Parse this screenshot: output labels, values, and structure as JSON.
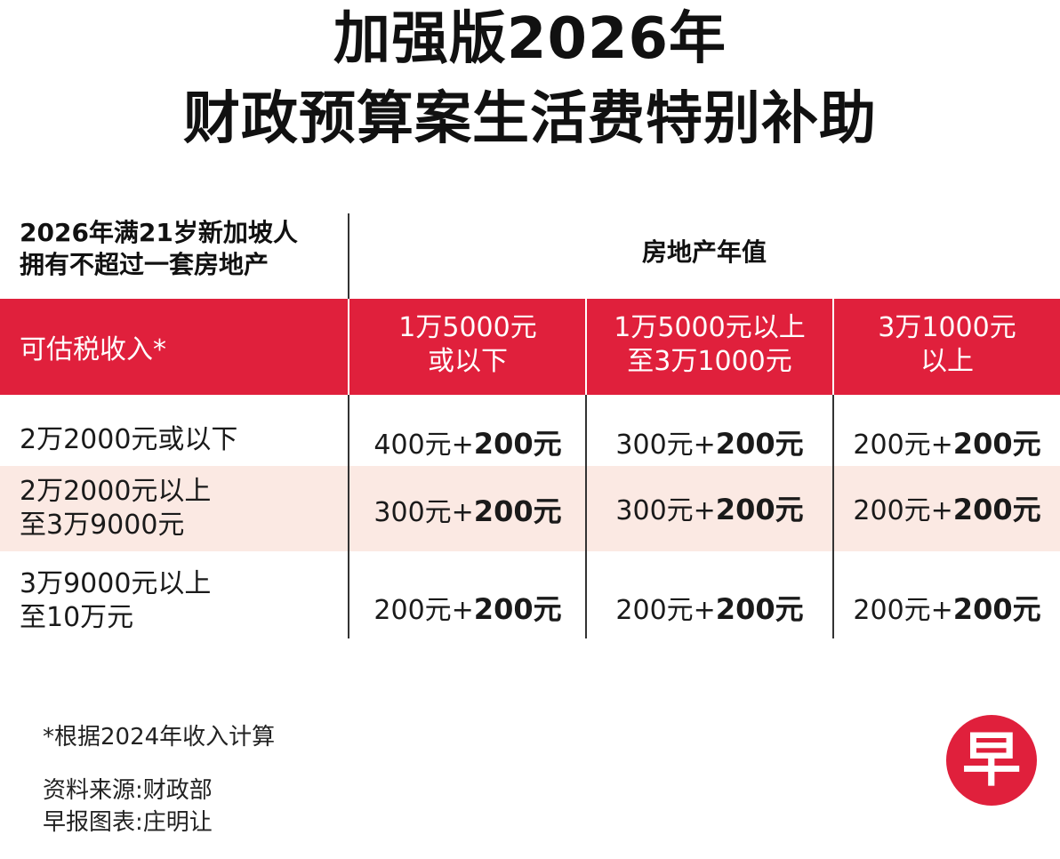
{
  "title": {
    "line1": "加强版2026年",
    "line2": "财政预算案生活费特别补助"
  },
  "table": {
    "header_left": [
      "2026年满21岁新加坡人",
      "拥有不超过一套房地产"
    ],
    "header_right": "房地产年值",
    "band_label": "可估税收入*",
    "columns": [
      [
        "1万5000元",
        "或以下"
      ],
      [
        "1万5000元以上",
        "至3万1000元"
      ],
      [
        "3万1000元",
        "以上"
      ]
    ],
    "rows": [
      {
        "label": [
          "2万2000元或以下"
        ],
        "cells": [
          {
            "base": "400元+",
            "bonus": "200元"
          },
          {
            "base": "300元+",
            "bonus": "200元"
          },
          {
            "base": "200元+",
            "bonus": "200元"
          }
        ]
      },
      {
        "label": [
          "2万2000元以上",
          "至3万9000元"
        ],
        "cells": [
          {
            "base": "300元+",
            "bonus": "200元"
          },
          {
            "base": "300元+",
            "bonus": "200元"
          },
          {
            "base": "200元+",
            "bonus": "200元"
          }
        ]
      },
      {
        "label": [
          "3万9000元以上",
          "至10万元"
        ],
        "cells": [
          {
            "base": "200元+",
            "bonus": "200元"
          },
          {
            "base": "200元+",
            "bonus": "200元"
          },
          {
            "base": "200元+",
            "bonus": "200元"
          }
        ]
      }
    ]
  },
  "footnotes": {
    "note": "*根据2024年收入计算",
    "source": "资料来源:财政部",
    "credit": "早报图表:庄明让"
  },
  "logo": {
    "glyph": "早",
    "color": "#e0203c"
  },
  "colors": {
    "band": "#e0203c",
    "highlight_row": "#fbe9e3"
  }
}
